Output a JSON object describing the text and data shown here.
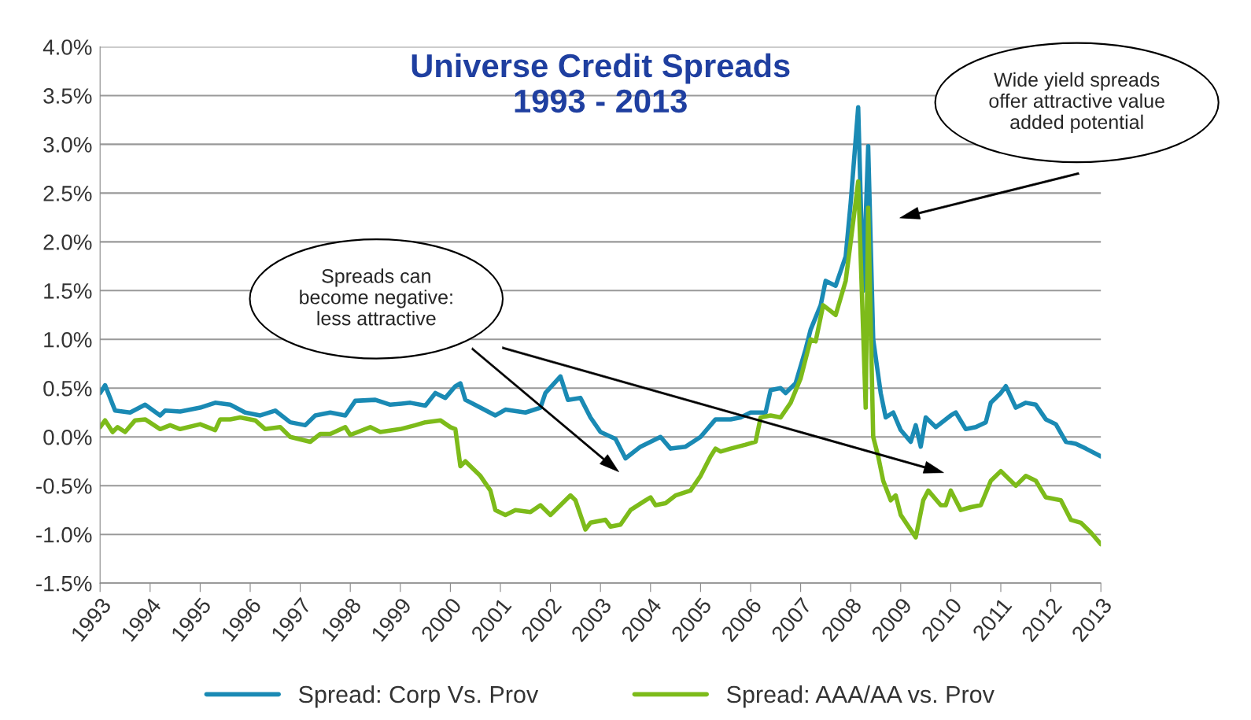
{
  "chart_data": {
    "type": "line",
    "title": "Universe Credit Spreads\n1993 - 2013",
    "xlim": [
      1993,
      2013
    ],
    "xticks": [
      1993,
      1994,
      1995,
      1996,
      1997,
      1998,
      1999,
      2000,
      2001,
      2002,
      2003,
      2004,
      2005,
      2006,
      2007,
      2008,
      2009,
      2010,
      2011,
      2012,
      2013
    ],
    "ylim": [
      -1.5,
      4.0
    ],
    "yticks": [
      {
        "value": -1.5,
        "label": "-1.5%"
      },
      {
        "value": -1.0,
        "label": "-1.0%"
      },
      {
        "value": -0.5,
        "label": "-0.5%"
      },
      {
        "value": 0.0,
        "label": "0.0%"
      },
      {
        "value": 0.5,
        "label": "0.5%"
      },
      {
        "value": 1.0,
        "label": "1.0%"
      },
      {
        "value": 1.5,
        "label": "1.5%"
      },
      {
        "value": 2.0,
        "label": "2.0%"
      },
      {
        "value": 2.5,
        "label": "2.5%"
      },
      {
        "value": 3.0,
        "label": "3.0%"
      },
      {
        "value": 3.5,
        "label": "3.5%"
      },
      {
        "value": 4.0,
        "label": "4.0%"
      }
    ],
    "grid": "y",
    "legend": "bottom",
    "marker": "none",
    "line_style": "solid",
    "series": [
      {
        "name": "Spread: Corp Vs. Prov",
        "color": "#1a8ab4",
        "x": [
          1993.0,
          1993.1,
          1993.3,
          1993.6,
          1993.9,
          1994.2,
          1994.3,
          1994.6,
          1995.0,
          1995.3,
          1995.6,
          1995.9,
          1996.2,
          1996.5,
          1996.8,
          1997.1,
          1997.3,
          1997.6,
          1997.9,
          1998.1,
          1998.5,
          1998.8,
          1999.2,
          1999.5,
          1999.7,
          1999.9,
          2000.1,
          2000.2,
          2000.3,
          2000.6,
          2000.9,
          2001.1,
          2001.5,
          2001.8,
          2001.9,
          2002.2,
          2002.35,
          2002.6,
          2002.8,
          2003.0,
          2003.3,
          2003.5,
          2003.8,
          2004.0,
          2004.2,
          2004.4,
          2004.7,
          2005.0,
          2005.3,
          2005.6,
          2005.8,
          2006.0,
          2006.3,
          2006.4,
          2006.6,
          2006.7,
          2006.9,
          2007.1,
          2007.2,
          2007.4,
          2007.5,
          2007.7,
          2007.9,
          2008.0,
          2008.15,
          2008.25,
          2008.35,
          2008.45,
          2008.6,
          2008.7,
          2008.85,
          2009.0,
          2009.2,
          2009.3,
          2009.4,
          2009.5,
          2009.7,
          2010.0,
          2010.1,
          2010.3,
          2010.5,
          2010.7,
          2010.8,
          2011.0,
          2011.1,
          2011.3,
          2011.5,
          2011.7,
          2011.9,
          2012.1,
          2012.3,
          2012.5,
          2012.7,
          2013.0
        ],
        "values": [
          0.45,
          0.53,
          0.27,
          0.25,
          0.33,
          0.22,
          0.27,
          0.26,
          0.3,
          0.35,
          0.33,
          0.25,
          0.22,
          0.27,
          0.15,
          0.12,
          0.22,
          0.25,
          0.22,
          0.37,
          0.38,
          0.33,
          0.35,
          0.32,
          0.45,
          0.4,
          0.52,
          0.55,
          0.38,
          0.3,
          0.22,
          0.28,
          0.25,
          0.3,
          0.45,
          0.62,
          0.38,
          0.4,
          0.2,
          0.05,
          -0.02,
          -0.22,
          -0.1,
          -0.05,
          0.0,
          -0.12,
          -0.1,
          0.0,
          0.18,
          0.18,
          0.2,
          0.25,
          0.25,
          0.48,
          0.5,
          0.45,
          0.55,
          0.9,
          1.1,
          1.35,
          1.6,
          1.55,
          1.85,
          2.4,
          3.38,
          1.5,
          2.98,
          1.0,
          0.45,
          0.2,
          0.25,
          0.07,
          -0.05,
          0.12,
          -0.1,
          0.2,
          0.1,
          0.22,
          0.25,
          0.08,
          0.1,
          0.15,
          0.35,
          0.45,
          0.52,
          0.3,
          0.35,
          0.33,
          0.18,
          0.13,
          -0.05,
          -0.07,
          -0.12,
          -0.2
        ]
      },
      {
        "name": "Spread: AAA/AA vs. Prov",
        "color": "#7dbb1a",
        "x": [
          1993.0,
          1993.1,
          1993.25,
          1993.35,
          1993.5,
          1993.7,
          1993.9,
          1994.2,
          1994.4,
          1994.6,
          1995.0,
          1995.3,
          1995.4,
          1995.6,
          1995.8,
          1996.1,
          1996.3,
          1996.6,
          1996.8,
          1997.2,
          1997.4,
          1997.6,
          1997.9,
          1998.0,
          1998.4,
          1998.6,
          1999.0,
          1999.3,
          1999.5,
          1999.8,
          2000.0,
          2000.1,
          2000.2,
          2000.3,
          2000.6,
          2000.8,
          2000.9,
          2001.1,
          2001.3,
          2001.6,
          2001.8,
          2002.0,
          2002.2,
          2002.4,
          2002.5,
          2002.7,
          2002.8,
          2003.1,
          2003.2,
          2003.4,
          2003.6,
          2003.9,
          2004.0,
          2004.1,
          2004.3,
          2004.5,
          2004.8,
          2005.0,
          2005.2,
          2005.3,
          2005.4,
          2005.6,
          2005.9,
          2006.1,
          2006.2,
          2006.4,
          2006.6,
          2006.8,
          2007.0,
          2007.2,
          2007.3,
          2007.45,
          2007.7,
          2007.9,
          2008.0,
          2008.15,
          2008.3,
          2008.35,
          2008.45,
          2008.55,
          2008.65,
          2008.8,
          2008.9,
          2009.0,
          2009.3,
          2009.45,
          2009.55,
          2009.8,
          2009.9,
          2010.0,
          2010.2,
          2010.4,
          2010.6,
          2010.8,
          2011.0,
          2011.3,
          2011.5,
          2011.7,
          2011.9,
          2012.2,
          2012.4,
          2012.6,
          2012.8,
          2013.0
        ],
        "values": [
          0.1,
          0.17,
          0.05,
          0.1,
          0.05,
          0.17,
          0.18,
          0.08,
          0.12,
          0.08,
          0.13,
          0.07,
          0.18,
          0.18,
          0.2,
          0.17,
          0.08,
          0.1,
          0.0,
          -0.05,
          0.03,
          0.03,
          0.1,
          0.02,
          0.1,
          0.05,
          0.08,
          0.12,
          0.15,
          0.17,
          0.1,
          0.08,
          -0.3,
          -0.25,
          -0.4,
          -0.55,
          -0.75,
          -0.8,
          -0.75,
          -0.77,
          -0.7,
          -0.8,
          -0.7,
          -0.6,
          -0.65,
          -0.95,
          -0.88,
          -0.85,
          -0.92,
          -0.9,
          -0.75,
          -0.65,
          -0.62,
          -0.7,
          -0.68,
          -0.6,
          -0.55,
          -0.4,
          -0.2,
          -0.12,
          -0.15,
          -0.12,
          -0.08,
          -0.05,
          0.2,
          0.22,
          0.2,
          0.35,
          0.6,
          1.0,
          0.98,
          1.35,
          1.25,
          1.6,
          2.0,
          2.62,
          0.3,
          2.35,
          0.0,
          -0.2,
          -0.45,
          -0.65,
          -0.6,
          -0.8,
          -1.03,
          -0.65,
          -0.55,
          -0.7,
          -0.7,
          -0.55,
          -0.75,
          -0.72,
          -0.7,
          -0.45,
          -0.35,
          -0.5,
          -0.4,
          -0.45,
          -0.62,
          -0.65,
          -0.85,
          -0.88,
          -0.98,
          -1.1
        ]
      }
    ],
    "annotations": [
      "Spreads can\nbecome negative:\nless attractive",
      "Wide yield spreads\noffer attractive value\nadded potential"
    ]
  }
}
